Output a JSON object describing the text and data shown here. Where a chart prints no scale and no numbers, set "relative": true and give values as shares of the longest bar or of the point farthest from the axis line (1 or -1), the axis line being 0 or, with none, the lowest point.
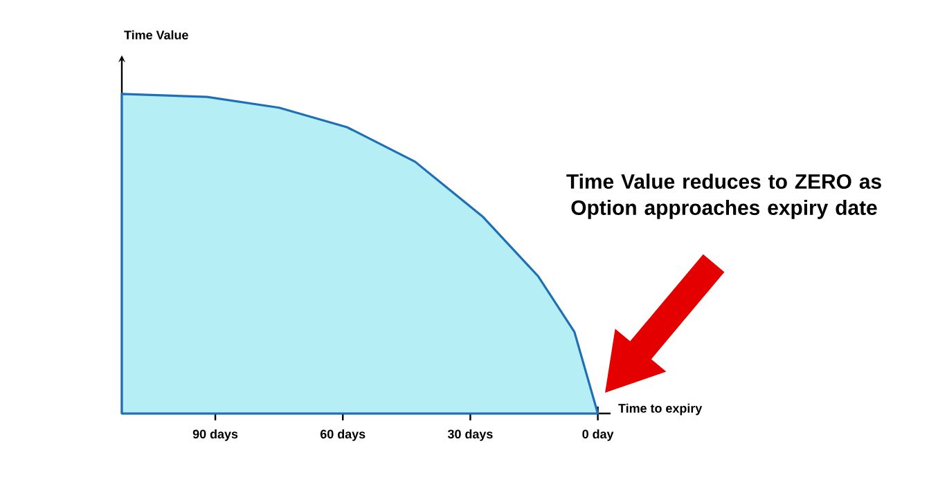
{
  "chart_data": {
    "type": "area",
    "relative": true,
    "xlabel": "Time to expiry",
    "ylabel": "Time Value",
    "x": [
      112,
      92,
      75,
      59,
      43,
      27,
      14,
      5.5,
      0
    ],
    "values": [
      1,
      0.991,
      0.957,
      0.896,
      0.788,
      0.615,
      0.429,
      0.255,
      0
    ],
    "color": "#1f6fb5",
    "xlim": [
      112,
      -3
    ],
    "xticks": [
      {
        "value": 90,
        "label": "90 days"
      },
      {
        "value": 60,
        "label": "60 days"
      },
      {
        "value": 30,
        "label": "30 days"
      },
      {
        "value": 0,
        "label": "0 day"
      }
    ],
    "annotations": [
      "Time Value reduces to ZERO as Option approaches expiry date"
    ]
  }
}
